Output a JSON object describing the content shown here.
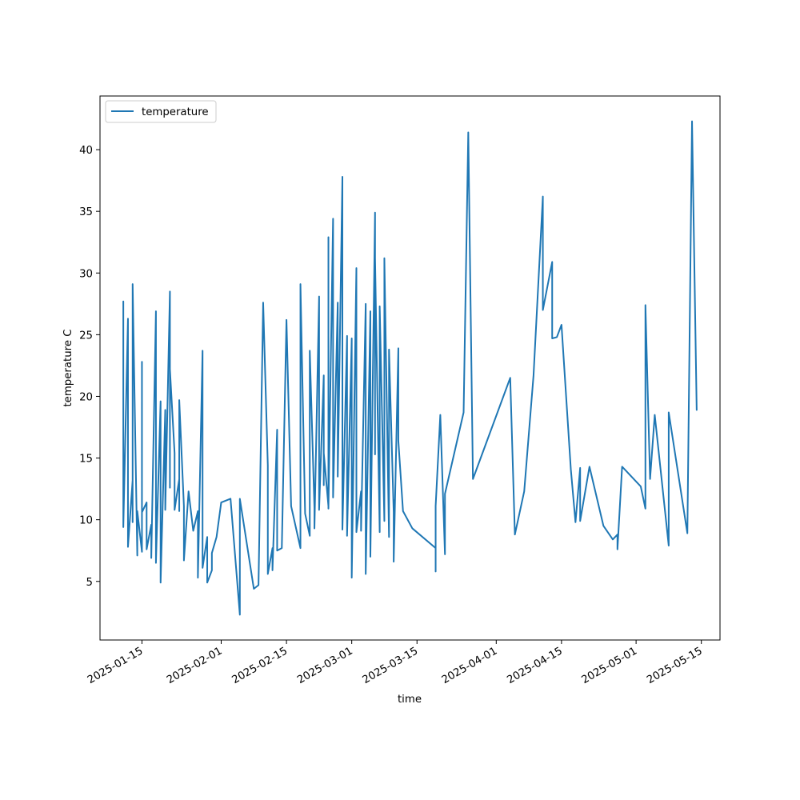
{
  "chart_data": {
    "type": "line",
    "xlabel": "time",
    "ylabel": "temperature C",
    "legend_placement": "upper-left",
    "grid": false,
    "x_axis_kind": "date",
    "xlim": [
      "2025-01-06",
      "2025-05-19"
    ],
    "ylim": [
      0.25,
      44.35
    ],
    "x_ticks": [
      "2025-01-15",
      "2025-02-01",
      "2025-02-15",
      "2025-03-01",
      "2025-03-15",
      "2025-04-01",
      "2025-04-15",
      "2025-05-01",
      "2025-05-15"
    ],
    "y_ticks": [
      5,
      10,
      15,
      20,
      25,
      30,
      35,
      40
    ],
    "series": [
      {
        "name": "temperature",
        "color": "#1f77b4",
        "points": [
          [
            "2025-01-11",
            11.2
          ],
          [
            "2025-01-11",
            27.7
          ],
          [
            "2025-01-11",
            9.6
          ],
          [
            "2025-01-11",
            9.4
          ],
          [
            "2025-01-12",
            26.3
          ],
          [
            "2025-01-12",
            7.8
          ],
          [
            "2025-01-13",
            13.2
          ],
          [
            "2025-01-13",
            9.8
          ],
          [
            "2025-01-13",
            29.1
          ],
          [
            "2025-01-14",
            7.1
          ],
          [
            "2025-01-14",
            10.7
          ],
          [
            "2025-01-15",
            7.4
          ],
          [
            "2025-01-15",
            22.8
          ],
          [
            "2025-01-15",
            10.6
          ],
          [
            "2025-01-16",
            11.4
          ],
          [
            "2025-01-16",
            7.6
          ],
          [
            "2025-01-17",
            9.6
          ],
          [
            "2025-01-17",
            6.9
          ],
          [
            "2025-01-18",
            26.9
          ],
          [
            "2025-01-18",
            6.5
          ],
          [
            "2025-01-19",
            19.6
          ],
          [
            "2025-01-19",
            4.9
          ],
          [
            "2025-01-20",
            18.9
          ],
          [
            "2025-01-20",
            10.8
          ],
          [
            "2025-01-21",
            28.5
          ],
          [
            "2025-01-21",
            12.6
          ],
          [
            "2025-01-21",
            22.2
          ],
          [
            "2025-01-22",
            15.4
          ],
          [
            "2025-01-22",
            10.8
          ],
          [
            "2025-01-23",
            13.3
          ],
          [
            "2025-01-23",
            10.7
          ],
          [
            "2025-01-23",
            18.1
          ],
          [
            "2025-01-23",
            19.7
          ],
          [
            "2025-01-24",
            11.1
          ],
          [
            "2025-01-24",
            6.7
          ],
          [
            "2025-01-25",
            12.3
          ],
          [
            "2025-01-26",
            9.1
          ],
          [
            "2025-01-27",
            10.7
          ],
          [
            "2025-01-27",
            7.2
          ],
          [
            "2025-01-27",
            5.3
          ],
          [
            "2025-01-28",
            23.7
          ],
          [
            "2025-01-28",
            6.5
          ],
          [
            "2025-01-28",
            6.1
          ],
          [
            "2025-01-29",
            8.6
          ],
          [
            "2025-01-29",
            7.1
          ],
          [
            "2025-01-29",
            4.9
          ],
          [
            "2025-01-30",
            5.9
          ],
          [
            "2025-01-30",
            7.3
          ],
          [
            "2025-01-31",
            8.6
          ],
          [
            "2025-02-01",
            11.4
          ],
          [
            "2025-02-03",
            11.7
          ],
          [
            "2025-02-05",
            2.3
          ],
          [
            "2025-02-05",
            11.7
          ],
          [
            "2025-02-08",
            4.4
          ],
          [
            "2025-02-09",
            4.7
          ],
          [
            "2025-02-10",
            27.6
          ],
          [
            "2025-02-11",
            14.4
          ],
          [
            "2025-02-11",
            5.6
          ],
          [
            "2025-02-12",
            7.7
          ],
          [
            "2025-02-12",
            5.9
          ],
          [
            "2025-02-13",
            17.3
          ],
          [
            "2025-02-13",
            7.5
          ],
          [
            "2025-02-14",
            7.7
          ],
          [
            "2025-02-15",
            26.2
          ],
          [
            "2025-02-16",
            11.1
          ],
          [
            "2025-02-18",
            7.7
          ],
          [
            "2025-02-18",
            29.1
          ],
          [
            "2025-02-19",
            10.5
          ],
          [
            "2025-02-20",
            8.7
          ],
          [
            "2025-02-20",
            23.7
          ],
          [
            "2025-02-21",
            10.9
          ],
          [
            "2025-02-21",
            9.3
          ],
          [
            "2025-02-22",
            28.1
          ],
          [
            "2025-02-22",
            11.4
          ],
          [
            "2025-02-22",
            10.8
          ],
          [
            "2025-02-23",
            21.7
          ],
          [
            "2025-02-23",
            12.8
          ],
          [
            "2025-02-23",
            15.4
          ],
          [
            "2025-02-24",
            11.1
          ],
          [
            "2025-02-24",
            32.9
          ],
          [
            "2025-02-24",
            10.9
          ],
          [
            "2025-02-25",
            34.4
          ],
          [
            "2025-02-25",
            11.8
          ],
          [
            "2025-02-26",
            27.6
          ],
          [
            "2025-02-26",
            13.5
          ],
          [
            "2025-02-27",
            37.8
          ],
          [
            "2025-02-27",
            10.0
          ],
          [
            "2025-02-27",
            9.2
          ],
          [
            "2025-02-28",
            24.9
          ],
          [
            "2025-02-28",
            8.7
          ],
          [
            "2025-03-01",
            24.7
          ],
          [
            "2025-03-01",
            5.3
          ],
          [
            "2025-03-02",
            30.4
          ],
          [
            "2025-03-02",
            9.0
          ],
          [
            "2025-03-03",
            12.3
          ],
          [
            "2025-03-03",
            9.1
          ],
          [
            "2025-03-04",
            27.5
          ],
          [
            "2025-03-04",
            5.6
          ],
          [
            "2025-03-05",
            26.9
          ],
          [
            "2025-03-05",
            7.0
          ],
          [
            "2025-03-06",
            34.9
          ],
          [
            "2025-03-06",
            15.3
          ],
          [
            "2025-03-06",
            31.2
          ],
          [
            "2025-03-07",
            9.0
          ],
          [
            "2025-03-07",
            27.3
          ],
          [
            "2025-03-08",
            9.9
          ],
          [
            "2025-03-08",
            31.2
          ],
          [
            "2025-03-09",
            8.6
          ],
          [
            "2025-03-09",
            23.8
          ],
          [
            "2025-03-10",
            10.6
          ],
          [
            "2025-03-10",
            11.6
          ],
          [
            "2025-03-10",
            6.6
          ],
          [
            "2025-03-11",
            23.9
          ],
          [
            "2025-03-11",
            16.4
          ],
          [
            "2025-03-12",
            10.7
          ],
          [
            "2025-03-14",
            9.3
          ],
          [
            "2025-03-19",
            7.7
          ],
          [
            "2025-03-19",
            5.8
          ],
          [
            "2025-03-19",
            11.1
          ],
          [
            "2025-03-20",
            18.5
          ],
          [
            "2025-03-21",
            7.2
          ],
          [
            "2025-03-21",
            12.1
          ],
          [
            "2025-03-25",
            18.7
          ],
          [
            "2025-03-26",
            41.4
          ],
          [
            "2025-03-27",
            13.3
          ],
          [
            "2025-04-04",
            21.5
          ],
          [
            "2025-04-05",
            8.8
          ],
          [
            "2025-04-07",
            12.3
          ],
          [
            "2025-04-09",
            21.7
          ],
          [
            "2025-04-11",
            36.2
          ],
          [
            "2025-04-11",
            27.0
          ],
          [
            "2025-04-13",
            30.9
          ],
          [
            "2025-04-13",
            24.7
          ],
          [
            "2025-04-14",
            24.8
          ],
          [
            "2025-04-15",
            25.8
          ],
          [
            "2025-04-17",
            14.1
          ],
          [
            "2025-04-18",
            9.8
          ],
          [
            "2025-04-19",
            14.2
          ],
          [
            "2025-04-19",
            9.9
          ],
          [
            "2025-04-21",
            14.3
          ],
          [
            "2025-04-24",
            9.5
          ],
          [
            "2025-04-26",
            8.4
          ],
          [
            "2025-04-27",
            8.8
          ],
          [
            "2025-04-27",
            7.6
          ],
          [
            "2025-04-28",
            14.3
          ],
          [
            "2025-05-02",
            12.7
          ],
          [
            "2025-05-03",
            10.9
          ],
          [
            "2025-05-03",
            27.4
          ],
          [
            "2025-05-04",
            13.3
          ],
          [
            "2025-05-05",
            18.5
          ],
          [
            "2025-05-08",
            7.9
          ],
          [
            "2025-05-08",
            18.7
          ],
          [
            "2025-05-12",
            8.9
          ],
          [
            "2025-05-13",
            42.3
          ],
          [
            "2025-05-14",
            18.9
          ]
        ]
      }
    ]
  }
}
